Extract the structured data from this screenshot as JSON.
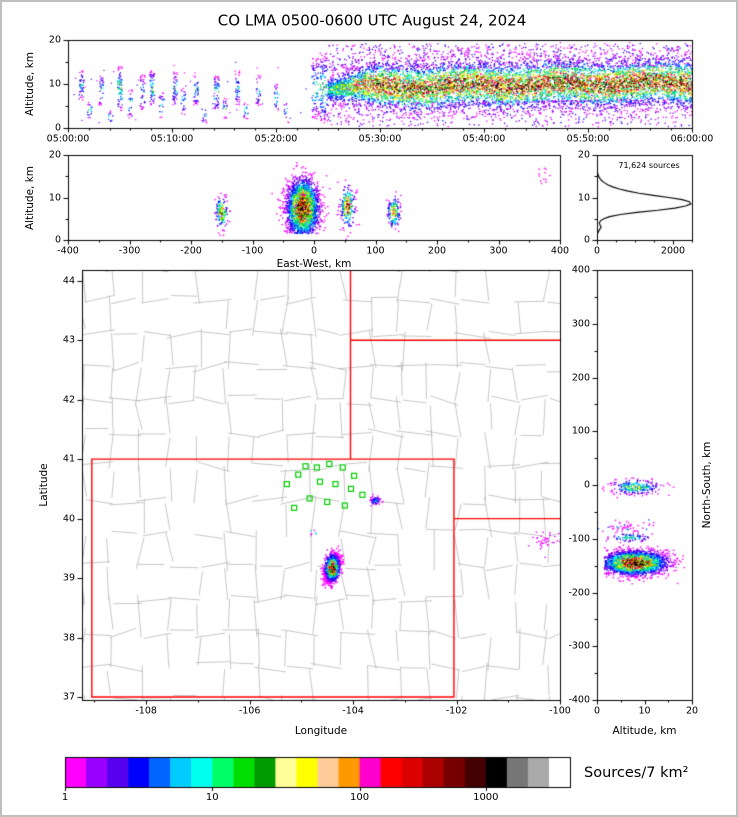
{
  "title": "CO LMA 0500-0600 UTC August 24, 2024",
  "density_ramp": [
    "#ff00ff",
    "#9900ff",
    "#4400ee",
    "#0000ff",
    "#0077ff",
    "#00bbff",
    "#00ffee",
    "#00ee66",
    "#00cc00",
    "#aadd00",
    "#ffff00",
    "#ffcc66",
    "#ff9900",
    "#ff00bb",
    "#ff0000",
    "#cc0000",
    "#7a0000",
    "#000000"
  ],
  "colorbar": {
    "label": "Sources/7 km²",
    "ticks": [
      {
        "label": "1",
        "pos": 0.0
      },
      {
        "label": "10",
        "pos": 0.2917
      },
      {
        "label": "100",
        "pos": 0.5833
      },
      {
        "label": "1000",
        "pos": 0.8333
      }
    ],
    "colors": [
      "#ff00ff",
      "#9900ff",
      "#5500ee",
      "#0000ff",
      "#0066ff",
      "#00ccff",
      "#00ffee",
      "#00ff66",
      "#00dd00",
      "#009900",
      "#ffff99",
      "#ffff00",
      "#ffcc99",
      "#ff9900",
      "#ff00cc",
      "#ff0000",
      "#dd0000",
      "#aa0000",
      "#770000",
      "#440000",
      "#000000",
      "#777777",
      "#aaaaaa",
      "#ffffff"
    ]
  },
  "chart_data": [
    {
      "id": "time-height",
      "type": "scatter",
      "xlabel": "",
      "ylabel": "Altitude, km",
      "xlim": [
        0,
        60
      ],
      "ylim": [
        0,
        20
      ],
      "xticks": {
        "values": [
          0,
          10,
          20,
          30,
          40,
          50,
          60
        ],
        "labels": [
          "05:00:00",
          "05:10:00",
          "05:20:00",
          "05:30:00",
          "05:40:00",
          "05:50:00",
          "06:00:00"
        ]
      },
      "yticks": {
        "values": [
          0,
          10,
          20
        ],
        "labels": [
          "0",
          "10",
          "20"
        ]
      },
      "noise": {
        "n": 45,
        "t": [
          0.5,
          23
        ],
        "alts": [
          1,
          15
        ]
      },
      "sparse_streaks": [
        {
          "t": 1.3,
          "alts": [
            6,
            13
          ],
          "n": 40
        },
        {
          "t": 2.1,
          "alts": [
            2,
            6
          ],
          "n": 16
        },
        {
          "t": 3.2,
          "alts": [
            5,
            12
          ],
          "n": 32
        },
        {
          "t": 4.1,
          "alts": [
            1,
            4
          ],
          "n": 12
        },
        {
          "t": 5.0,
          "alts": [
            4,
            14
          ],
          "n": 70,
          "peak": 0.8
        },
        {
          "t": 6.0,
          "alts": [
            2,
            9
          ],
          "n": 24
        },
        {
          "t": 7.2,
          "alts": [
            4,
            12
          ],
          "n": 40
        },
        {
          "t": 8.1,
          "alts": [
            5,
            13
          ],
          "n": 60,
          "peak": 0.8
        },
        {
          "t": 9.0,
          "alts": [
            2,
            8
          ],
          "n": 20
        },
        {
          "t": 10.3,
          "alts": [
            5,
            13
          ],
          "n": 46
        },
        {
          "t": 11.1,
          "alts": [
            3,
            9
          ],
          "n": 22
        },
        {
          "t": 12.3,
          "alts": [
            5,
            12
          ],
          "n": 38
        },
        {
          "t": 13.1,
          "alts": [
            1,
            5
          ],
          "n": 14
        },
        {
          "t": 14.3,
          "alts": [
            4,
            12
          ],
          "n": 54,
          "peak": 0.8
        },
        {
          "t": 15.1,
          "alts": [
            2,
            7
          ],
          "n": 18
        },
        {
          "t": 16.3,
          "alts": [
            5,
            13
          ],
          "n": 42
        },
        {
          "t": 17.1,
          "alts": [
            2,
            6
          ],
          "n": 16
        },
        {
          "t": 18.3,
          "alts": [
            5,
            12
          ],
          "n": 30
        },
        {
          "t": 20.1,
          "alts": [
            4,
            10
          ],
          "n": 24
        },
        {
          "t": 21.0,
          "alts": [
            1,
            6
          ],
          "n": 12
        },
        {
          "t": 23.8,
          "alts": [
            2,
            16
          ],
          "n": 90,
          "peak": 0.7,
          "w": 0.7
        },
        {
          "t": 24.6,
          "alts": [
            1,
            17
          ],
          "n": 120,
          "peak": 0.75,
          "w": 0.7
        }
      ],
      "storm_band": {
        "t0": 25.0,
        "t1": 60.0,
        "n": 8200,
        "core0": 9.2,
        "core1": 10.4,
        "spread": 2.7,
        "peak": 0.9,
        "fringe_n": 1900
      }
    },
    {
      "id": "ew-height",
      "type": "scatter",
      "xlabel": "East-West, km",
      "ylabel": "Altitude, km",
      "xlim": [
        -400,
        400
      ],
      "ylim": [
        0,
        20
      ],
      "xticks": {
        "values": [
          -400,
          -300,
          -200,
          -100,
          0,
          100,
          200,
          300,
          400
        ],
        "labels": [
          "-400",
          "-300",
          "-200",
          "-100",
          "0",
          "100",
          "200",
          "300",
          "400"
        ]
      },
      "yticks": {
        "values": [
          0,
          10,
          20
        ],
        "labels": [
          "0",
          "10",
          "20"
        ]
      },
      "clusters": [
        {
          "kind": "dense",
          "cx": -18,
          "cy": 7.5,
          "sx": 13,
          "sy": 3.4,
          "n": 2800,
          "peak": 1.0,
          "clip_y": [
            1.5,
            18.5
          ]
        },
        {
          "kind": "dense",
          "cx": -150,
          "cy": 6.5,
          "sx": 5,
          "sy": 1.8,
          "n": 150,
          "peak": 0.8
        },
        {
          "kind": "dense",
          "cx": 55,
          "cy": 8,
          "sx": 6,
          "sy": 2.4,
          "n": 210,
          "peak": 0.82
        },
        {
          "kind": "dense",
          "cx": 130,
          "cy": 6.5,
          "sx": 5,
          "sy": 1.8,
          "n": 140,
          "peak": 0.78
        },
        {
          "kind": "sparse",
          "cx": 372,
          "cy": 15,
          "sx": 5,
          "sy": 1.1,
          "n": 12,
          "colors": [
            "#ff00ff"
          ]
        }
      ]
    },
    {
      "id": "alt-histogram",
      "type": "line",
      "annotation": "71,624 sources",
      "xlabel": "",
      "ylabel": "",
      "xlim": [
        0,
        2500
      ],
      "ylim": [
        0,
        20
      ],
      "xticks": {
        "values": [
          0,
          2000
        ],
        "labels": [
          "0",
          "2000"
        ]
      },
      "yticks": {
        "values": [
          0,
          10,
          20
        ],
        "labels": [
          "0",
          "10",
          "20"
        ]
      },
      "profile": [
        [
          0,
          0
        ],
        [
          1.5,
          10
        ],
        [
          2.5,
          70
        ],
        [
          3,
          110
        ],
        [
          3.5,
          80
        ],
        [
          4,
          60
        ],
        [
          4.5,
          90
        ],
        [
          5,
          180
        ],
        [
          5.5,
          330
        ],
        [
          6,
          620
        ],
        [
          6.5,
          1050
        ],
        [
          7,
          1600
        ],
        [
          7.5,
          2050
        ],
        [
          8,
          2330
        ],
        [
          8.5,
          2470
        ],
        [
          9,
          2430
        ],
        [
          9.5,
          2240
        ],
        [
          10,
          1890
        ],
        [
          10.5,
          1480
        ],
        [
          11,
          1110
        ],
        [
          11.5,
          820
        ],
        [
          12,
          590
        ],
        [
          12.5,
          410
        ],
        [
          13,
          280
        ],
        [
          13.5,
          190
        ],
        [
          14,
          120
        ],
        [
          14.5,
          75
        ],
        [
          15,
          45
        ],
        [
          15.5,
          25
        ],
        [
          16,
          12
        ],
        [
          17,
          3
        ],
        [
          18,
          1
        ],
        [
          20,
          0
        ]
      ]
    },
    {
      "id": "plan-map",
      "type": "scatter",
      "xlabel": "Longitude",
      "ylabel": "Latitude",
      "xlim": [
        -109.24,
        -100.0
      ],
      "ylim": [
        36.95,
        44.18
      ],
      "xticks": {
        "values": [
          -108,
          -106,
          -104,
          -102,
          -100
        ],
        "labels": [
          "-108",
          "-106",
          "-104",
          "-102",
          "-100"
        ]
      },
      "yticks": {
        "values": [
          37,
          38,
          39,
          40,
          41,
          42,
          43,
          44
        ],
        "labels": [
          "37",
          "38",
          "39",
          "40",
          "41",
          "42",
          "43",
          "44"
        ]
      },
      "border_color": "#ff0000",
      "station_color": "#00cc00",
      "county_grid": {
        "spacing_deg": 0.56,
        "jitter_deg": 0.18,
        "density": 0.8,
        "seed": 7,
        "color": "#b8b8b8"
      },
      "red_borders": [
        {
          "type": "rect",
          "lon_min": -109.05,
          "lon_max": -102.05,
          "lat_min": 37.0,
          "lat_max": 41.0
        },
        {
          "type": "vline",
          "lon": -104.05,
          "lat_from": 41.0,
          "lat_to": 44.18
        },
        {
          "type": "hline",
          "lat": 43.0,
          "lon_from": -104.05,
          "lon_to": -100.0
        },
        {
          "type": "hline",
          "lat": 40.0,
          "lon_from": -102.05,
          "lon_to": -100.0
        }
      ],
      "stations": [
        [
          -105.28,
          40.58
        ],
        [
          -105.06,
          40.74
        ],
        [
          -104.92,
          40.88
        ],
        [
          -104.7,
          40.86
        ],
        [
          -104.46,
          40.92
        ],
        [
          -104.2,
          40.86
        ],
        [
          -103.98,
          40.72
        ],
        [
          -104.64,
          40.62
        ],
        [
          -104.34,
          40.58
        ],
        [
          -104.04,
          40.5
        ],
        [
          -104.84,
          40.34
        ],
        [
          -104.5,
          40.28
        ],
        [
          -104.16,
          40.22
        ],
        [
          -105.14,
          40.18
        ],
        [
          -103.82,
          40.4
        ]
      ],
      "clusters": [
        {
          "kind": "dense",
          "cx": -104.4,
          "cy": 39.17,
          "sx": 0.07,
          "sy": 0.11,
          "rho": 0.35,
          "n": 1900,
          "peak": 1.0,
          "size": 1.5
        },
        {
          "kind": "dense",
          "cx": -103.57,
          "cy": 40.3,
          "sx": 0.05,
          "sy": 0.035,
          "n": 70,
          "peak": 0.38
        },
        {
          "kind": "sparse",
          "cx": -100.35,
          "cy": 39.63,
          "sx": 0.16,
          "sy": 0.08,
          "n": 40,
          "colors": [
            "#ff00ff",
            "#ff00ff",
            "#cc00ff"
          ]
        },
        {
          "kind": "sparse",
          "cx": -104.75,
          "cy": 39.78,
          "sx": 0.04,
          "sy": 0.04,
          "n": 6,
          "colors": [
            "#ff00ff",
            "#00ccff"
          ]
        }
      ]
    },
    {
      "id": "ns-height",
      "type": "scatter",
      "xlabel": "Altitude, km",
      "ylabel": "",
      "ylabel_right": "North-South, km",
      "xlim": [
        0,
        20
      ],
      "ylim": [
        -400,
        400
      ],
      "xticks": {
        "values": [
          0,
          10,
          20
        ],
        "labels": [
          "0",
          "10",
          "20"
        ]
      },
      "yticks": {
        "values": [
          -400,
          -300,
          -200,
          -100,
          0,
          100,
          200,
          300,
          400
        ],
        "labels": [
          "-400",
          "-300",
          "-200",
          "-100",
          "0",
          "100",
          "200",
          "300",
          "400"
        ]
      },
      "clusters": [
        {
          "kind": "dense",
          "cx": 8,
          "cy": -145,
          "sx": 3.4,
          "sy": 11,
          "n": 2800,
          "peak": 1.0,
          "clip_x": [
            1.5,
            18.5
          ]
        },
        {
          "kind": "dense",
          "cx": 8,
          "cy": -4,
          "sx": 2.6,
          "sy": 7,
          "n": 240,
          "peak": 0.55
        },
        {
          "kind": "sparse",
          "cx": 6,
          "cy": -78,
          "sx": 2.6,
          "sy": 5,
          "n": 55,
          "colors": [
            "#ff00ff",
            "#ff00ff",
            "#0066ff"
          ]
        },
        {
          "kind": "dense",
          "cx": 7,
          "cy": -98,
          "sx": 2.2,
          "sy": 4,
          "n": 80,
          "peak": 0.5
        }
      ]
    }
  ]
}
